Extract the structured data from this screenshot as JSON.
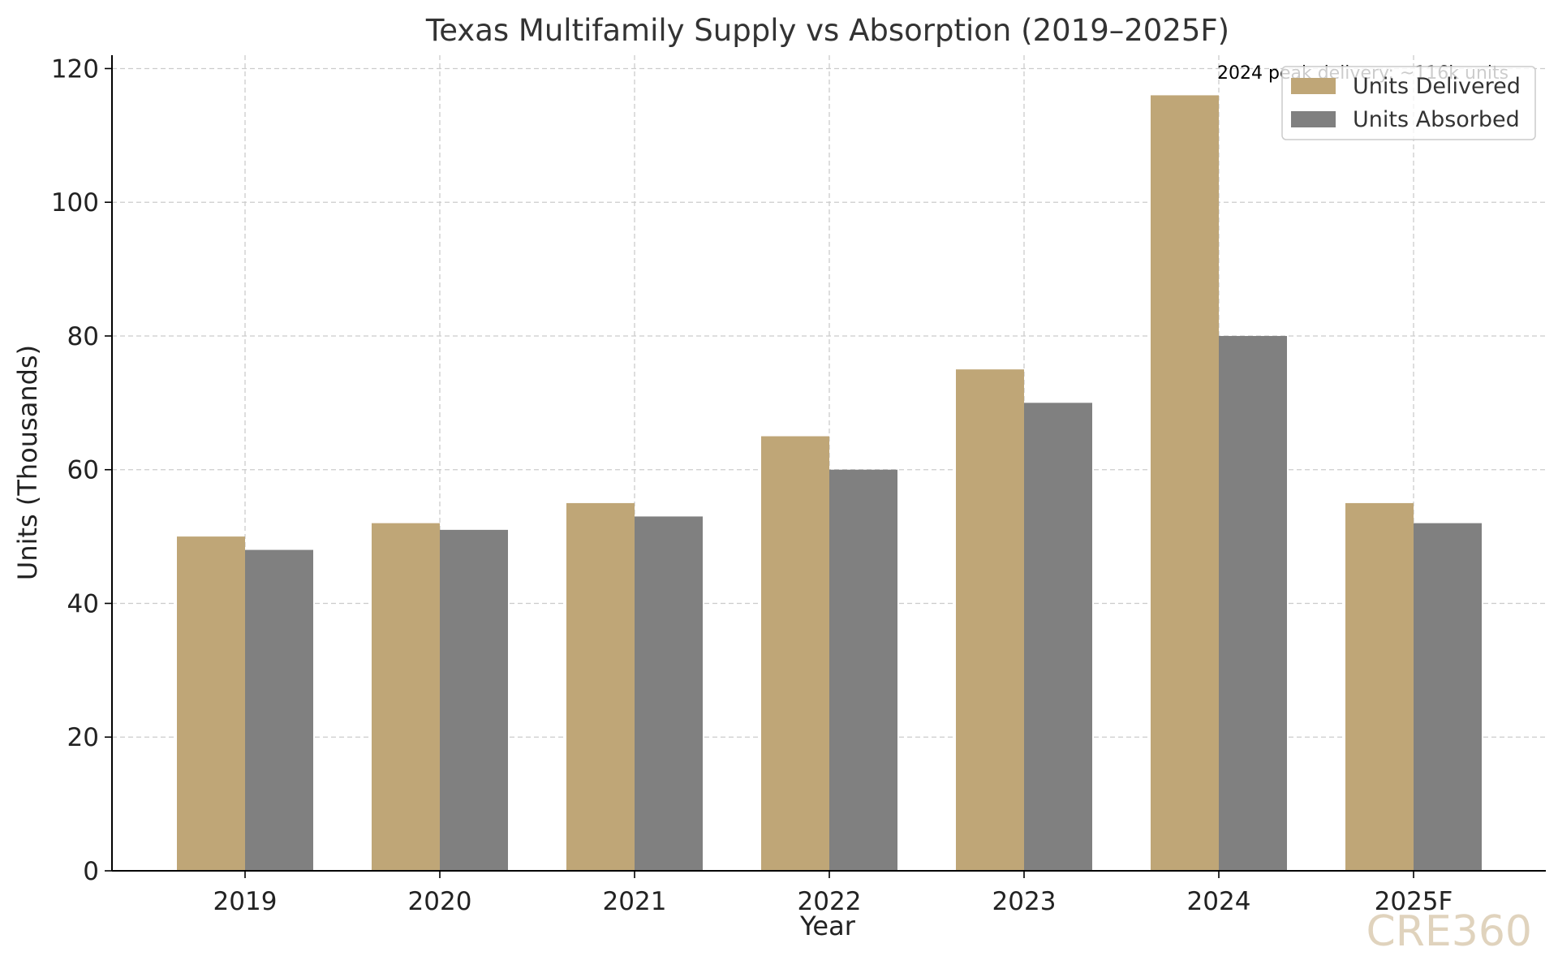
{
  "chart_data": {
    "type": "bar",
    "title": "Texas Multifamily Supply vs Absorption (2019–2025F)",
    "xlabel": "Year",
    "ylabel": "Units (Thousands)",
    "categories": [
      "2019",
      "2020",
      "2021",
      "2022",
      "2023",
      "2024",
      "2025F"
    ],
    "series": [
      {
        "name": "Units Delivered",
        "values": [
          50,
          52,
          55,
          65,
          75,
          116,
          55
        ],
        "color": "#bfa677"
      },
      {
        "name": "Units Absorbed",
        "values": [
          48,
          51,
          53,
          60,
          70,
          80,
          52
        ],
        "color": "#808080"
      }
    ],
    "ylim": [
      0,
      122
    ],
    "yticks": [
      0,
      20,
      40,
      60,
      80,
      100,
      120
    ],
    "grid": true,
    "legend": "top-right",
    "annotation": "2024 peak delivery: ~116k units",
    "watermark": "CRE360"
  }
}
